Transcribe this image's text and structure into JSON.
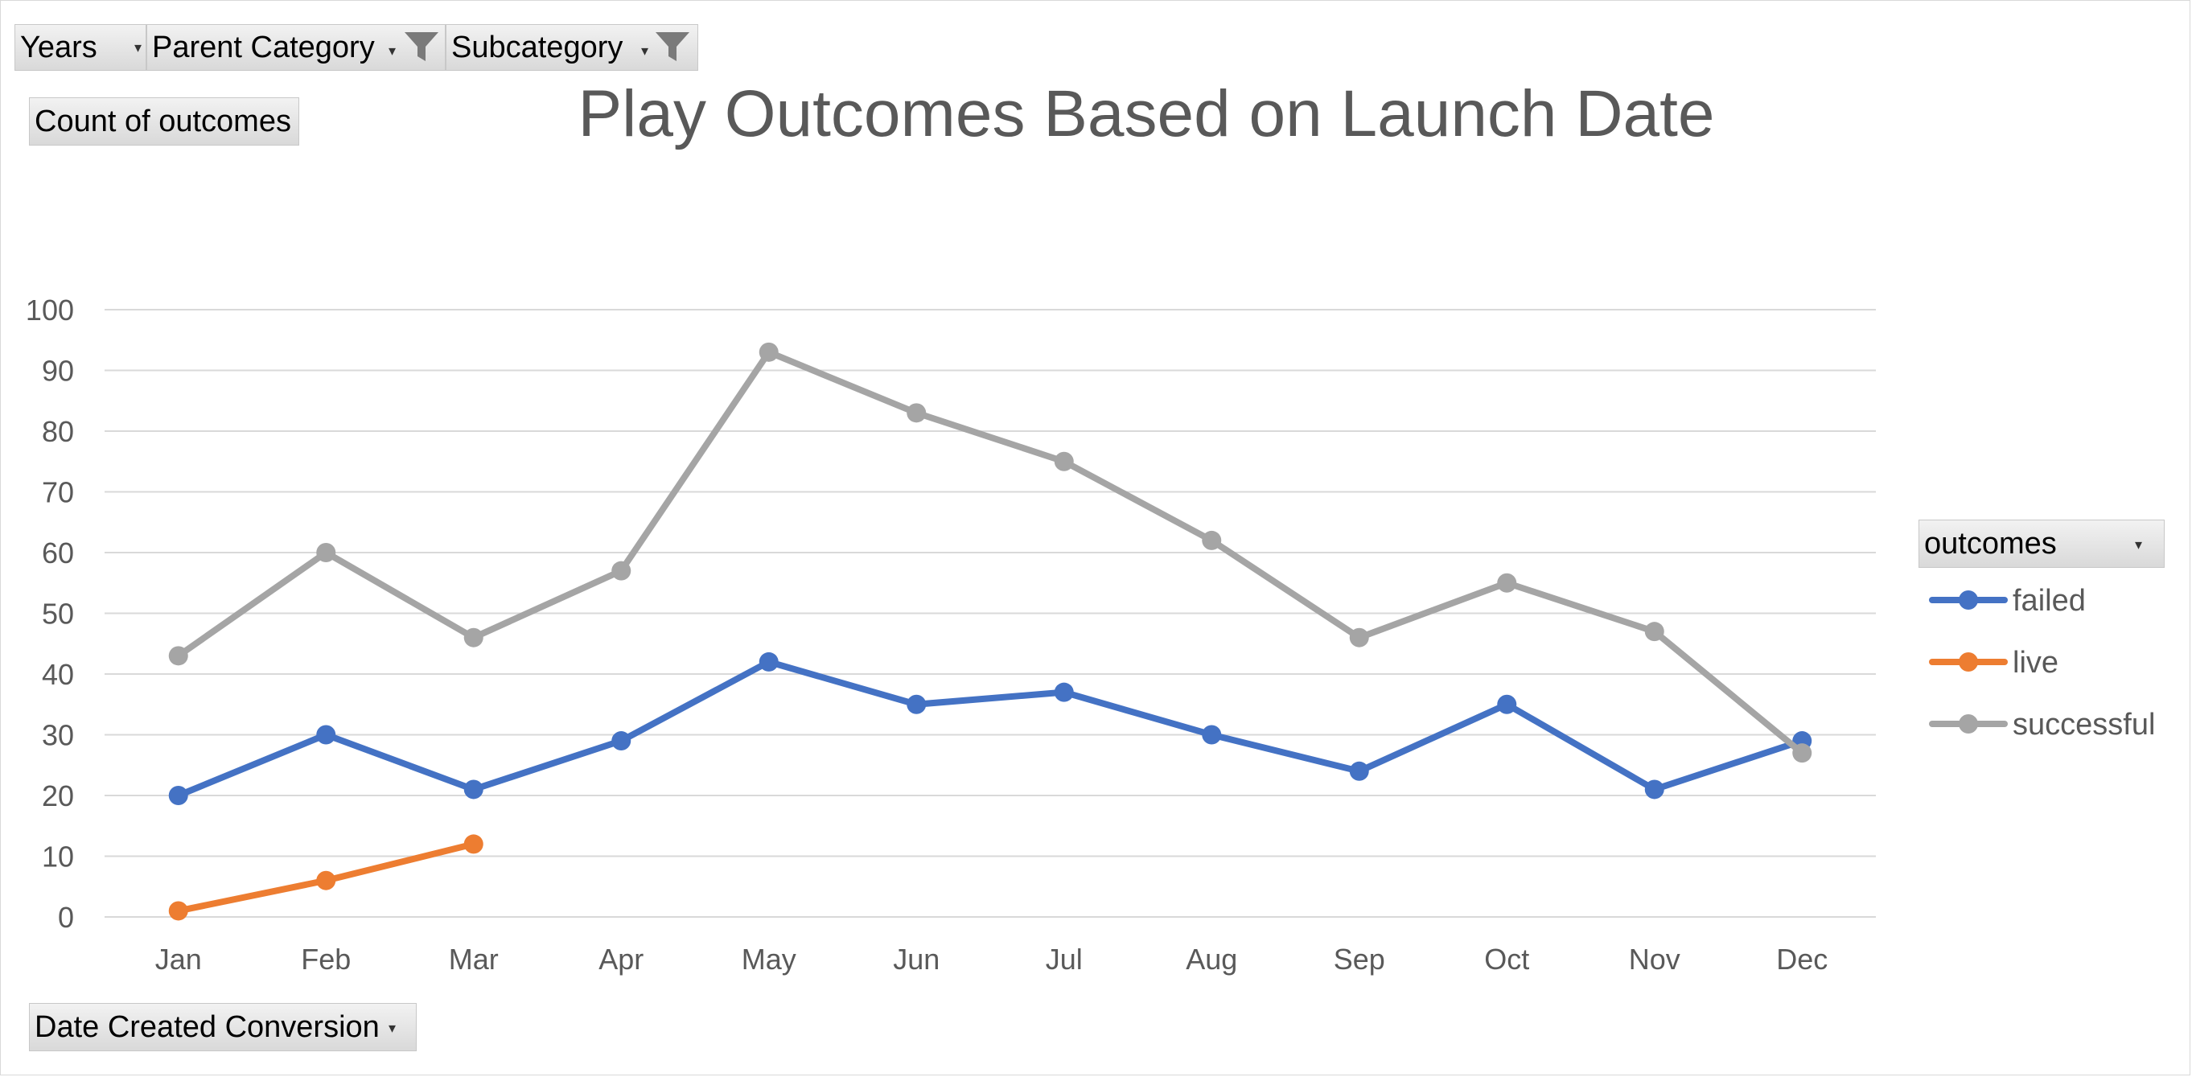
{
  "filters": {
    "years_label": "Years",
    "parent_category_label": "Parent Category",
    "subcategory_label": "Subcategory"
  },
  "value_field_label": "Count of outcomes",
  "axis_field_label": "Date Created Conversion",
  "legend_field_label": "outcomes",
  "colors": {
    "failed": "#4472c4",
    "live": "#ed7d31",
    "successful": "#a5a5a5",
    "grid": "#d9d9d9",
    "text": "#595959"
  },
  "icons": [
    "dropdown-caret-icon",
    "funnel-filter-icon"
  ],
  "chart_data": {
    "type": "line",
    "title": "Play Outcomes Based on Launch Date",
    "xlabel": "",
    "ylabel": "",
    "categories": [
      "Jan",
      "Feb",
      "Mar",
      "Apr",
      "May",
      "Jun",
      "Jul",
      "Aug",
      "Sep",
      "Oct",
      "Nov",
      "Dec"
    ],
    "ylim": [
      0,
      100
    ],
    "yticks": [
      "0",
      "10",
      "20",
      "30",
      "40",
      "50",
      "60",
      "70",
      "80",
      "90",
      "100"
    ],
    "grid": true,
    "legend": "right",
    "series": [
      {
        "name": "failed",
        "values": [
          20,
          30,
          21,
          29,
          42,
          35,
          37,
          30,
          24,
          35,
          21,
          29
        ]
      },
      {
        "name": "live",
        "values": [
          1,
          6,
          12,
          null,
          null,
          null,
          null,
          null,
          null,
          null,
          null,
          null
        ]
      },
      {
        "name": "successful",
        "values": [
          43,
          60,
          46,
          57,
          93,
          83,
          75,
          62,
          46,
          55,
          47,
          27
        ]
      }
    ]
  }
}
